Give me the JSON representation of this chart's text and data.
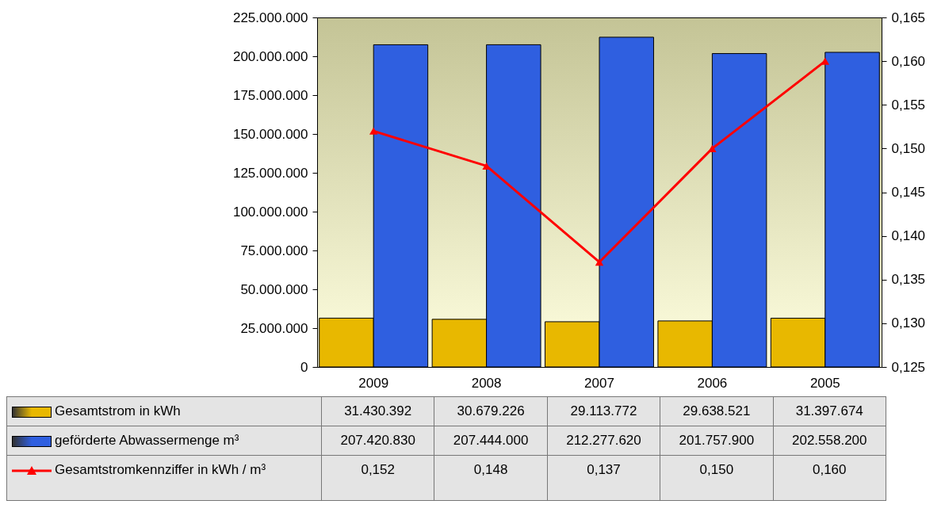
{
  "chart_data": {
    "type": "bar",
    "categories": [
      "2009",
      "2008",
      "2007",
      "2006",
      "2005"
    ],
    "series": [
      {
        "name": "Gesamtstrom in kWh",
        "color": "#e8b800",
        "values": [
          31430392,
          30679226,
          29113772,
          29638521,
          31397674
        ]
      },
      {
        "name": "geförderte Abwassermenge  m³",
        "color": "#2f5fe0",
        "values": [
          207420830,
          207444000,
          212277620,
          201757900,
          202558200
        ]
      },
      {
        "name": "Gesamtstromkennziffer  in kWh / m³",
        "color": "#ff0000",
        "type": "line",
        "axis": "y2",
        "marker": "triangle",
        "values": [
          0.152,
          0.148,
          0.137,
          0.15,
          0.16
        ]
      }
    ],
    "ylim": [
      0,
      225000000
    ],
    "yticks": [
      {
        "value": 0,
        "label": "0"
      },
      {
        "value": 25000000,
        "label": "25.000.000"
      },
      {
        "value": 50000000,
        "label": "50.000.000"
      },
      {
        "value": 75000000,
        "label": "75.000.000"
      },
      {
        "value": 100000000,
        "label": "100.000.000"
      },
      {
        "value": 125000000,
        "label": "125.000.000"
      },
      {
        "value": 150000000,
        "label": "150.000.000"
      },
      {
        "value": 175000000,
        "label": "175.000.000"
      },
      {
        "value": 200000000,
        "label": "200.000.000"
      },
      {
        "value": 225000000,
        "label": "225.000.000"
      }
    ],
    "y2lim": [
      0.125,
      0.165
    ],
    "y2ticks": [
      {
        "value": 0.125,
        "label": "0,125"
      },
      {
        "value": 0.13,
        "label": "0,130"
      },
      {
        "value": 0.135,
        "label": "0,135"
      },
      {
        "value": 0.14,
        "label": "0,140"
      },
      {
        "value": 0.145,
        "label": "0,145"
      },
      {
        "value": 0.15,
        "label": "0,150"
      },
      {
        "value": 0.155,
        "label": "0,155"
      },
      {
        "value": 0.16,
        "label": "0,160"
      },
      {
        "value": 0.165,
        "label": "0,165"
      }
    ],
    "value_labels": [
      [
        "31.430.392",
        "30.679.226",
        "29.113.772",
        "29.638.521",
        "31.397.674"
      ],
      [
        "207.420.830",
        "207.444.000",
        "212.277.620",
        "201.757.900",
        "202.558.200"
      ],
      [
        "0,152",
        "0,148",
        "0,137",
        "0,150",
        "0,160"
      ]
    ],
    "legend": "bottom",
    "grid": false
  }
}
